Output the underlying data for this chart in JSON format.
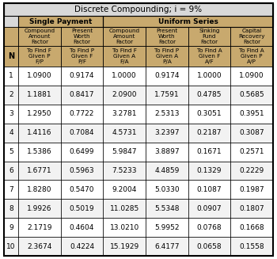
{
  "title": "Discrete Compounding; i = 9%",
  "section1": "Single Payment",
  "section2": "Uniform Series",
  "col_headers_line1": [
    "Compound\nAmount\nFactor",
    "Present\nWorth\nFactor",
    "Compound\nAmount\nFactor",
    "Present\nWorth\nFactor",
    "Sinking\nFund\nFactor",
    "Capital\nRecovery\nFactor"
  ],
  "col_headers_line2": [
    "To Find F\nGiven P\nF/P",
    "To Find P\nGiven F\nP/F",
    "To Find F\nGiven A\nF/A",
    "To Find P\nGiven A\nP/A",
    "To Find A\nGiven F\nA/F",
    "To Find A\nGiven P\nA/P"
  ],
  "n_col_header": "N",
  "rows": [
    [
      1,
      "1.0900",
      "0.9174",
      "1.0000",
      "0.9174",
      "1.0000",
      "1.0900"
    ],
    [
      2,
      "1.1881",
      "0.8417",
      "2.0900",
      "1.7591",
      "0.4785",
      "0.5685"
    ],
    [
      3,
      "1.2950",
      "0.7722",
      "3.2781",
      "2.5313",
      "0.3051",
      "0.3951"
    ],
    [
      4,
      "1.4116",
      "0.7084",
      "4.5731",
      "3.2397",
      "0.2187",
      "0.3087"
    ],
    [
      5,
      "1.5386",
      "0.6499",
      "5.9847",
      "3.8897",
      "0.1671",
      "0.2571"
    ],
    [
      6,
      "1.6771",
      "0.5963",
      "7.5233",
      "4.4859",
      "0.1329",
      "0.2229"
    ],
    [
      7,
      "1.8280",
      "0.5470",
      "9.2004",
      "5.0330",
      "0.1087",
      "0.1987"
    ],
    [
      8,
      "1.9926",
      "0.5019",
      "11.0285",
      "5.5348",
      "0.0907",
      "0.1807"
    ],
    [
      9,
      "2.1719",
      "0.4604",
      "13.0210",
      "5.9952",
      "0.0768",
      "0.1668"
    ],
    [
      10,
      "2.3674",
      "0.4224",
      "15.1929",
      "6.4177",
      "0.0658",
      "0.1558"
    ]
  ],
  "header_bg": "#c8a96e",
  "title_bg": "#d9d9d9",
  "white_bg": "#ffffff",
  "alt_bg": "#f2f2f2",
  "border_color": "#000000",
  "text_color": "#000000"
}
